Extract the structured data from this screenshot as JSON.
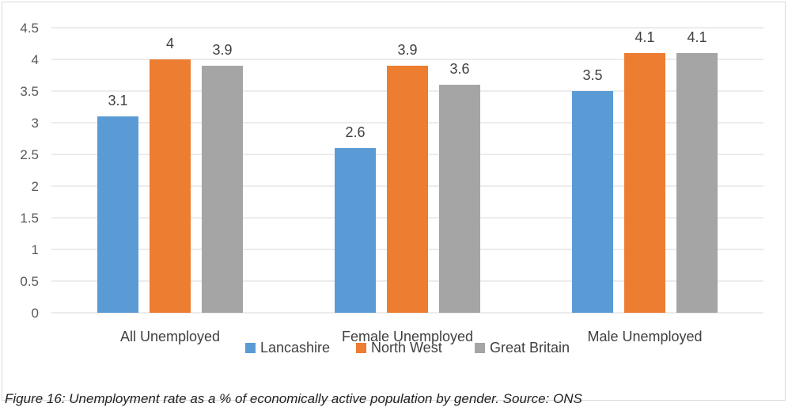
{
  "chart_data": {
    "type": "bar",
    "categories": [
      "All Unemployed",
      "Female Unemployed",
      "Male Unemployed"
    ],
    "series": [
      {
        "name": "Lancashire",
        "color": "#5b9bd5",
        "values": [
          3.1,
          2.6,
          3.5
        ]
      },
      {
        "name": "North West",
        "color": "#ed7d31",
        "values": [
          4,
          3.9,
          4.1
        ]
      },
      {
        "name": "Great Britain",
        "color": "#a5a5a5",
        "values": [
          3.9,
          3.6,
          4.1
        ]
      }
    ],
    "yticks": [
      "0",
      "0.5",
      "1",
      "1.5",
      "2",
      "2.5",
      "3",
      "3.5",
      "4",
      "4.5"
    ],
    "ylim": [
      0,
      4.5
    ],
    "grid": true,
    "legend_position": "bottom",
    "title": "",
    "xlabel": "",
    "ylabel": ""
  },
  "caption": "Figure 16: Unemployment rate as a % of economically active population by gender. Source: ONS"
}
